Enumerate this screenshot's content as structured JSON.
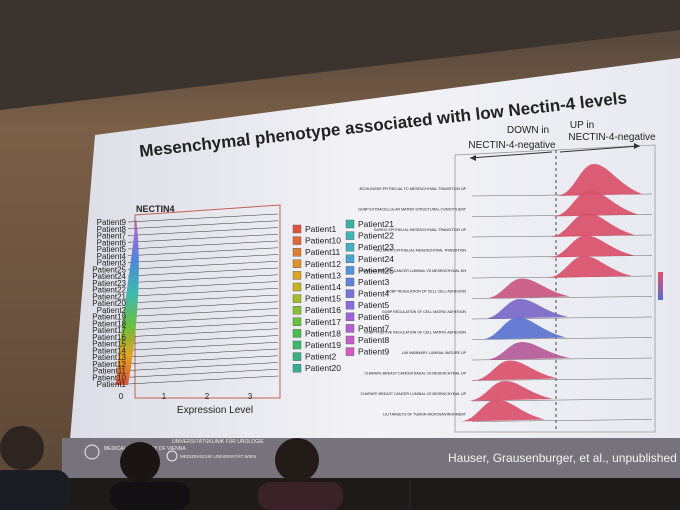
{
  "slide": {
    "title": "Mesenchymal phenotype associated with low Nectin-4 levels",
    "left_plot": {
      "gene": "NECTIN4",
      "y_labels": [
        "Patient9",
        "Patient8",
        "Patient7",
        "Patient6",
        "Patient5",
        "Patient4",
        "Patient3",
        "Patient25",
        "Patient24",
        "Patient23",
        "Patient22",
        "Patient21",
        "Patient20",
        "Patient2",
        "Patient19",
        "Patient18",
        "Patient17",
        "Patient16",
        "Patient15",
        "Patient14",
        "Patient13",
        "Patient12",
        "Patient11",
        "Patient10",
        "Patient1"
      ],
      "x_ticks": [
        "0",
        "1",
        "2",
        "3"
      ],
      "x_label": "Expression Level"
    },
    "legend": [
      "Patient1",
      "Patient10",
      "Patient11",
      "Patient12",
      "Patient13",
      "Patient14",
      "Patient15",
      "Patient16",
      "Patient17",
      "Patient18",
      "Patient19",
      "Patient2",
      "Patient20",
      "Patient21",
      "Patient22",
      "Patient23",
      "Patient24",
      "Patient25",
      "Patient3",
      "Patient4",
      "Patient5",
      "Patient6",
      "Patient7",
      "Patient8",
      "Patient9"
    ],
    "right_plot": {
      "down_label": [
        "DOWN in",
        "NECTIN-4-negative"
      ],
      "up_label": [
        "UP in",
        "NECTIN-4-negative"
      ],
      "pathways": [
        "JECHLINGER EPITHELIAL TO MESENCHYMAL TRANSITION UP",
        "GOBP EXTRACELLULAR MATRIX STRUCTURAL CONSTITUENT",
        "SARRIO EPITHELIAL MESENCHYMAL TRANSITION UP",
        "HALLMARK EPITHELIAL MESENCHYMAL TRANSITION",
        "CHARAFE BREAST CANCER LUMINAL VS MESENCHYMAL DN",
        "GOBP REGULATION OF CELL CELL ADHESION",
        "GOBP REGULATION OF CELL MATRIX ADHESION",
        "GOBP POSITIVE REGULATION OF CELL MATRIX ADHESION",
        "LIM MAMMARY LUMINAL MATURE UP",
        "CHARAFE BREAST CANCER BASAL VS MESENCHYMAL UP",
        "CHARAFE BREAST CANCER LUMINAL VS MESENCHYMAL UP",
        "LIU TARGETS OF TUMOR MICROENVIRONMENT"
      ]
    },
    "citation": "Hauser, Grausenburger, et al., unpublished",
    "logos": [
      "MEDICAL UNIVERSITY OF VIENNA",
      "UNIVERSITÄTSKLINIK FÜR UROLOGIE",
      "MEDIZINISCHE UNIVERSITÄT WIEN"
    ]
  }
}
